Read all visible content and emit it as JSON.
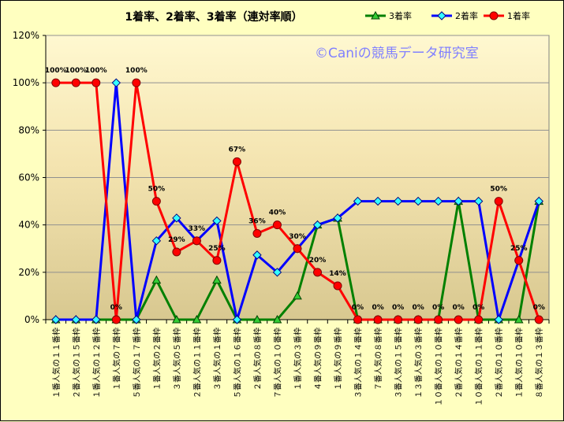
{
  "chart_data": {
    "type": "line",
    "title": "1着率、2着率、3着率（連対率順）",
    "watermark": "©Caniの競馬データ研究室",
    "categories": [
      "１番人気の１１番枠",
      "２番人気の１５番枠",
      "１番人気の１２番枠",
      "１番人気の７番枠",
      "５番人気の１７番枠",
      "１番人気の２番枠",
      "３番人気の５番枠",
      "２番人気の１１番枠",
      "３番人気の１番枠",
      "５番人気の１６番枠",
      "２番人気の８番枠",
      "７番人気の１０番枠",
      "１番人気の３番枠",
      "４番人気の９番枠",
      "１番人気の９番枠",
      "３番人気の１４番枠",
      "７番人気の８番枠",
      "３番人気の１５番枠",
      "１３番人気の３番枠",
      "１０番人気の１０番枠",
      "２番人気の１４番枠",
      "１０番人気の１１番枠",
      "２番人気の１０番枠",
      "１番人気の１０番枠",
      "８番人気の１３番枠"
    ],
    "ylim": [
      0,
      120
    ],
    "yticks": [
      0,
      20,
      40,
      60,
      80,
      100,
      120
    ],
    "ytick_labels": [
      "0%",
      "20%",
      "40%",
      "60%",
      "80%",
      "100%",
      "120%"
    ],
    "grid": "horizontal",
    "legend_position": "top-right",
    "series": [
      {
        "name": "3着率",
        "color": "#008000",
        "marker": "triangle",
        "marker_fill": "#33cc33",
        "values": [
          0,
          0,
          0,
          0,
          0,
          16.7,
          0,
          0,
          16.7,
          0,
          0,
          0,
          10,
          40,
          42.9,
          0,
          0,
          0,
          0,
          0,
          50,
          0,
          0,
          0,
          50
        ]
      },
      {
        "name": "2着率",
        "color": "#0000ff",
        "marker": "diamond",
        "marker_fill": "#33ffff",
        "values": [
          0,
          0,
          0,
          100,
          0,
          33.3,
          42.9,
          33.3,
          41.7,
          0,
          27.3,
          20,
          30,
          40,
          42.9,
          50,
          50,
          50,
          50,
          50,
          50,
          50,
          0,
          25,
          50
        ]
      },
      {
        "name": "1着率",
        "color": "#ff0000",
        "marker": "circle",
        "marker_fill": "#ff0000",
        "values": [
          100,
          100,
          100,
          0,
          100,
          50,
          28.6,
          33.3,
          25,
          66.7,
          36.4,
          40,
          30,
          20,
          14.3,
          0,
          0,
          0,
          0,
          0,
          0,
          0,
          50,
          25,
          0
        ],
        "data_labels": [
          "100%",
          "100%",
          "100%",
          "0%",
          "100%",
          "50%",
          "29%",
          "33%",
          "25%",
          "67%",
          "36%",
          "40%",
          "30%",
          "20%",
          "14%",
          "0%",
          "0%",
          "0%",
          "0%",
          "0%",
          "0%",
          "0%",
          "50%",
          "25%",
          "0%"
        ]
      }
    ]
  }
}
